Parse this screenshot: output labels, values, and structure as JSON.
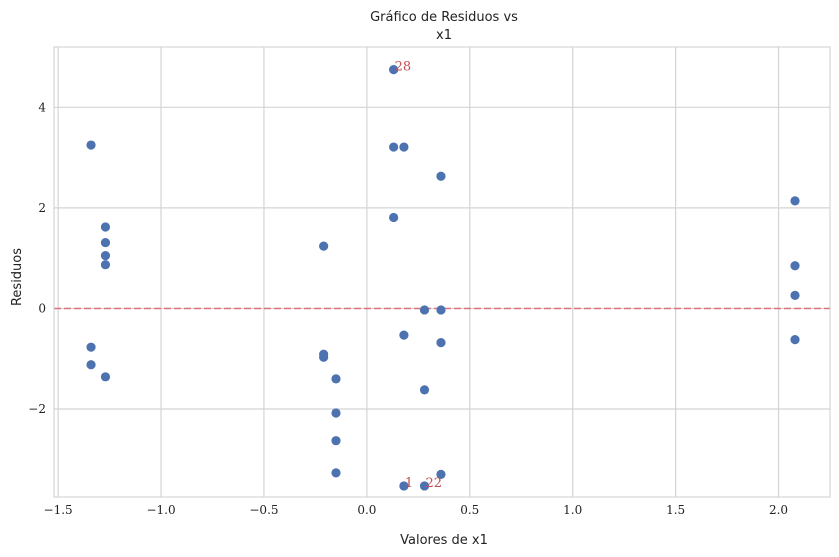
{
  "chart_data": {
    "type": "scatter",
    "title": [
      "Gráfico de Residuos vs",
      "x1"
    ],
    "xlabel": "Valores de x1",
    "ylabel": "Residuos",
    "xlim": [
      -1.52,
      2.25
    ],
    "ylim": [
      -3.75,
      5.2
    ],
    "x_ticks": [
      -1.5,
      -1.0,
      -0.5,
      0.0,
      0.5,
      1.0,
      1.5,
      2.0
    ],
    "x_tick_labels": [
      "−1.5",
      "−1.0",
      "−0.5",
      "0.0",
      "0.5",
      "1.0",
      "1.5",
      "2.0"
    ],
    "y_ticks": [
      -2,
      0,
      2,
      4
    ],
    "y_tick_labels": [
      "−2",
      "0",
      "2",
      "4"
    ],
    "grid": true,
    "reference_line": {
      "y": 0,
      "style": "dashed"
    },
    "colors": {
      "points": "#4c72b0",
      "reference_line": "#d9727a",
      "annotation": "#c44e52",
      "grid": "#d4d4d4",
      "axes": "#cccccc"
    },
    "series": [
      {
        "points": [
          {
            "x": -1.34,
            "y": 3.25
          },
          {
            "x": -1.34,
            "y": -0.77
          },
          {
            "x": -1.34,
            "y": -1.12
          },
          {
            "x": -1.27,
            "y": 1.62
          },
          {
            "x": -1.27,
            "y": 1.31
          },
          {
            "x": -1.27,
            "y": 1.05
          },
          {
            "x": -1.27,
            "y": 0.87
          },
          {
            "x": -1.27,
            "y": -1.36
          },
          {
            "x": -0.21,
            "y": 1.24
          },
          {
            "x": -0.21,
            "y": -0.91
          },
          {
            "x": -0.21,
            "y": -0.97
          },
          {
            "x": -0.15,
            "y": -1.4
          },
          {
            "x": -0.15,
            "y": -2.08
          },
          {
            "x": -0.15,
            "y": -2.63
          },
          {
            "x": -0.15,
            "y": -3.27
          },
          {
            "x": 0.13,
            "y": 4.75
          },
          {
            "x": 0.13,
            "y": 3.21
          },
          {
            "x": 0.13,
            "y": 1.81
          },
          {
            "x": 0.18,
            "y": 3.21
          },
          {
            "x": 0.18,
            "y": -0.53
          },
          {
            "x": 0.18,
            "y": -3.53
          },
          {
            "x": 0.28,
            "y": -0.03
          },
          {
            "x": 0.28,
            "y": -1.62
          },
          {
            "x": 0.28,
            "y": -3.53
          },
          {
            "x": 0.36,
            "y": 2.63
          },
          {
            "x": 0.36,
            "y": -0.03
          },
          {
            "x": 0.36,
            "y": -0.68
          },
          {
            "x": 0.36,
            "y": -3.3
          },
          {
            "x": 2.08,
            "y": 2.14
          },
          {
            "x": 2.08,
            "y": 0.85
          },
          {
            "x": 2.08,
            "y": 0.26
          },
          {
            "x": 2.08,
            "y": -0.62
          }
        ]
      }
    ],
    "annotations": [
      {
        "text": "28",
        "x": 0.13,
        "y": 4.75
      },
      {
        "text": "1",
        "x": 0.18,
        "y": -3.53
      },
      {
        "text": "22",
        "x": 0.28,
        "y": -3.53
      }
    ]
  }
}
